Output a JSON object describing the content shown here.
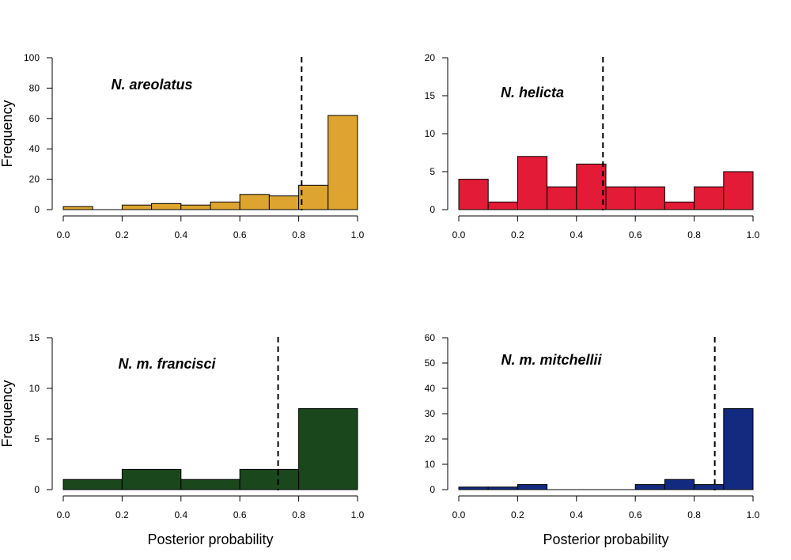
{
  "figure": {
    "ylabel": "Frequency",
    "xlabel": "Posterior probability"
  },
  "chart_data": [
    {
      "type": "bar",
      "title": "N. areolatus",
      "color": "#DDA52F",
      "bin_edges": [
        0.0,
        0.1,
        0.2,
        0.3,
        0.4,
        0.5,
        0.6,
        0.7,
        0.8,
        0.9,
        1.0
      ],
      "values": [
        2,
        0,
        3,
        4,
        3,
        5,
        10,
        9,
        16,
        62
      ],
      "threshold": 0.81,
      "xlim": [
        0,
        1
      ],
      "ylim": [
        0,
        100
      ],
      "x_ticks": [
        "0.0",
        "0.2",
        "0.4",
        "0.6",
        "0.8",
        "1.0"
      ],
      "y_ticks": [
        "0",
        "20",
        "40",
        "60",
        "80",
        "100"
      ],
      "ylabel": "Frequency",
      "xlabel": ""
    },
    {
      "type": "bar",
      "title": "N. helicta",
      "color": "#E31B36",
      "bin_edges": [
        0.0,
        0.1,
        0.2,
        0.3,
        0.4,
        0.5,
        0.6,
        0.7,
        0.8,
        0.9,
        1.0
      ],
      "values": [
        4,
        1,
        7,
        3,
        6,
        3,
        3,
        1,
        3,
        5
      ],
      "threshold": 0.49,
      "xlim": [
        0,
        1
      ],
      "ylim": [
        0,
        20
      ],
      "x_ticks": [
        "0.0",
        "0.2",
        "0.4",
        "0.6",
        "0.8",
        "1.0"
      ],
      "y_ticks": [
        "0",
        "5",
        "10",
        "15",
        "20"
      ],
      "ylabel": "",
      "xlabel": ""
    },
    {
      "type": "bar",
      "title": "N. m. francisci",
      "color": "#1A471C",
      "bin_edges": [
        0.0,
        0.2,
        0.4,
        0.6,
        0.8,
        1.0
      ],
      "values": [
        1,
        2,
        1,
        2,
        8
      ],
      "threshold": 0.73,
      "xlim": [
        0,
        1
      ],
      "ylim": [
        0,
        15
      ],
      "x_ticks": [
        "0.0",
        "0.2",
        "0.4",
        "0.6",
        "0.8",
        "1.0"
      ],
      "y_ticks": [
        "0",
        "5",
        "10",
        "15"
      ],
      "ylabel": "Frequency",
      "xlabel": "Posterior probability"
    },
    {
      "type": "bar",
      "title": "N. m. mitchellii",
      "color": "#122A80",
      "bin_edges": [
        0.0,
        0.1,
        0.2,
        0.3,
        0.4,
        0.5,
        0.6,
        0.7,
        0.8,
        0.9,
        1.0
      ],
      "values": [
        1,
        1,
        2,
        0,
        0,
        0,
        2,
        4,
        2,
        32
      ],
      "threshold": 0.87,
      "xlim": [
        0,
        1
      ],
      "ylim": [
        0,
        60
      ],
      "x_ticks": [
        "0.0",
        "0.2",
        "0.4",
        "0.6",
        "0.8",
        "1.0"
      ],
      "y_ticks": [
        "0",
        "10",
        "20",
        "30",
        "40",
        "50",
        "60"
      ],
      "ylabel": "",
      "xlabel": "Posterior probability"
    }
  ]
}
